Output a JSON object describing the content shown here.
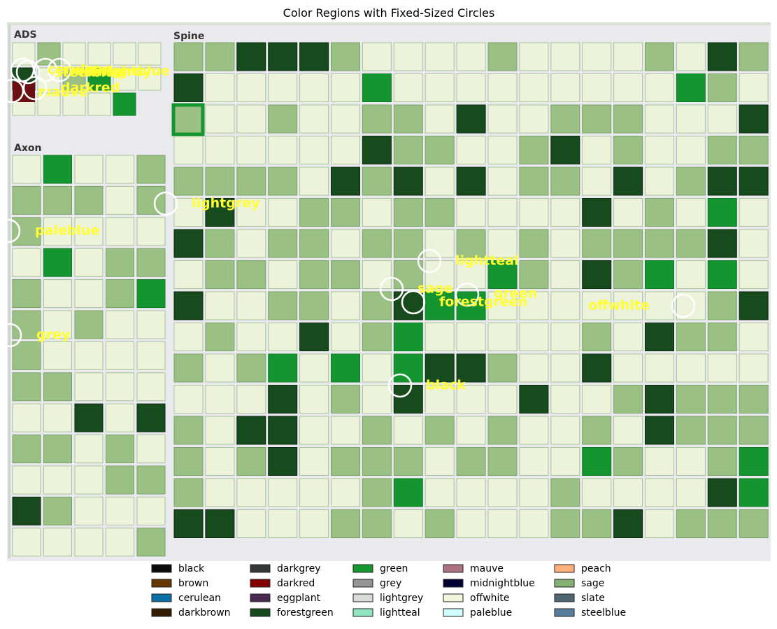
{
  "chart_data": {
    "type": "image-annotation",
    "title": "Color Regions with Fixed-Sized Circles",
    "panels": [
      {
        "label": "ADS"
      },
      {
        "label": "Axon"
      },
      {
        "label": "Spine"
      }
    ],
    "annotations": [
      {
        "label": "lightgrey"
      },
      {
        "label": "paleblue"
      },
      {
        "label": "grey"
      },
      {
        "label": "lightteal"
      },
      {
        "label": "sage"
      },
      {
        "label": "green"
      },
      {
        "label": "forestgreen"
      },
      {
        "label": "offwhite"
      },
      {
        "label": "black"
      },
      {
        "label": "mauve"
      },
      {
        "label": "darkred"
      },
      {
        "label": "darkgrey"
      },
      {
        "label": "midnightblue"
      },
      {
        "label": "steelblue"
      },
      {
        "label": "cerulean"
      }
    ],
    "legend": [
      {
        "label": "black",
        "color": "#0b0b0b"
      },
      {
        "label": "brown",
        "color": "#653700"
      },
      {
        "label": "cerulean",
        "color": "#0a6fa6"
      },
      {
        "label": "darkbrown",
        "color": "#341c02"
      },
      {
        "label": "darkgrey",
        "color": "#363737"
      },
      {
        "label": "darkred",
        "color": "#840000"
      },
      {
        "label": "eggplant",
        "color": "#4b2a52"
      },
      {
        "label": "forestgreen",
        "color": "#154a1c"
      },
      {
        "label": "green",
        "color": "#15962f"
      },
      {
        "label": "grey",
        "color": "#929591"
      },
      {
        "label": "lightgrey",
        "color": "#d8dcd6"
      },
      {
        "label": "lightteal",
        "color": "#90e4c1"
      },
      {
        "label": "mauve",
        "color": "#ae7181"
      },
      {
        "label": "midnightblue",
        "color": "#020035"
      },
      {
        "label": "offwhite",
        "color": "#f0f6dc"
      },
      {
        "label": "paleblue",
        "color": "#d0fefe"
      },
      {
        "label": "peach",
        "color": "#ffb07c"
      },
      {
        "label": "sage",
        "color": "#87ae73"
      },
      {
        "label": "slate",
        "color": "#516572"
      },
      {
        "label": "steelblue",
        "color": "#5a7d9a"
      }
    ],
    "legend_placement": "bottom-center"
  }
}
